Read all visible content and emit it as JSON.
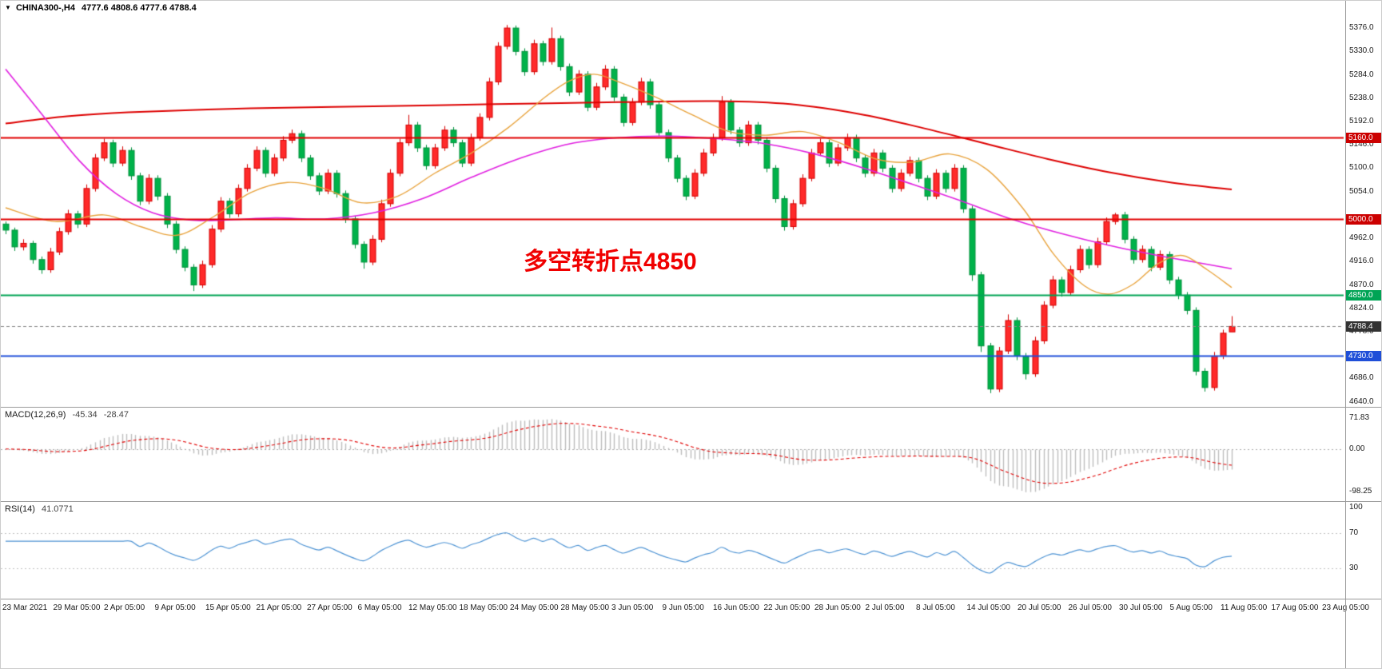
{
  "header": {
    "symbol": "CHINA300-,H4",
    "ohlc": "4777.6 4808.6 4777.6 4788.4"
  },
  "annotation": {
    "text": "多空转折点4850",
    "color": "#f00000"
  },
  "price_axis": {
    "ticks": [
      "5376.0",
      "5330.0",
      "5284.0",
      "5238.0",
      "5192.0",
      "5146.0",
      "5100.0",
      "5054.0",
      "4962.0",
      "4916.0",
      "4870.0",
      "4824.0",
      "4778.0",
      "4686.0",
      "4640.0"
    ],
    "range_min": 4630,
    "range_max": 5395
  },
  "hlines": [
    {
      "value": 5160.0,
      "label": "5160.0",
      "color": "#e00000",
      "badge_bg": "#cc0000",
      "style": "solid",
      "width": 2
    },
    {
      "value": 5000.0,
      "label": "5000.0",
      "color": "#e00000",
      "badge_bg": "#cc0000",
      "style": "solid",
      "width": 2
    },
    {
      "value": 4850.0,
      "label": "4850.0",
      "color": "#00a455",
      "badge_bg": "#00a455",
      "style": "solid",
      "width": 2
    },
    {
      "value": 4788.4,
      "label": "4788.4",
      "color": "#888888",
      "badge_bg": "#333333",
      "style": "dashed",
      "width": 1
    },
    {
      "value": 4730.0,
      "label": "4730.0",
      "color": "#1f4fd8",
      "badge_bg": "#1f4fd8",
      "style": "solid",
      "width": 2
    }
  ],
  "panes": {
    "macd": {
      "label": "MACD(12,26,9)",
      "value_main": "-45.34",
      "value_signal": "-28.47",
      "axis_ticks": [
        {
          "text": "71.83",
          "value": 71.83
        },
        {
          "text": "0.00",
          "value": 0
        },
        {
          "text": "-98.25",
          "value": -98.25
        }
      ],
      "colors": {
        "histogram": "#bdbdbd",
        "signal": "#e00000",
        "zero_line": "#aaaaaa"
      }
    },
    "rsi": {
      "label": "RSI(14)",
      "value": "41.0771",
      "axis_ticks": [
        {
          "text": "100",
          "value": 100
        },
        {
          "text": "70",
          "value": 70
        },
        {
          "text": "30",
          "value": 30
        }
      ],
      "levels": [
        70,
        30
      ],
      "colors": {
        "line": "#4f94d4",
        "level_line": "#c0c0c0"
      }
    }
  },
  "time_axis": [
    "23 Mar 2021",
    "29 Mar 05:00",
    "2 Apr 05:00",
    "9 Apr 05:00",
    "15 Apr 05:00",
    "21 Apr 05:00",
    "27 Apr 05:00",
    "6 May 05:00",
    "12 May 05:00",
    "18 May 05:00",
    "24 May 05:00",
    "28 May 05:00",
    "3 Jun 05:00",
    "9 Jun 05:00",
    "16 Jun 05:00",
    "22 Jun 05:00",
    "28 Jun 05:00",
    "2 Jul 05:00",
    "8 Jul 05:00",
    "14 Jul 05:00",
    "20 Jul 05:00",
    "26 Jul 05:00",
    "30 Jul 05:00",
    "5 Aug 05:00",
    "11 Aug 05:00",
    "17 Aug 05:00",
    "23 Aug 05:00"
  ],
  "chart_data": {
    "type": "candlestick",
    "title": "CHINA300- H4",
    "timeframe": "H4",
    "x_start": "23 Mar 2021",
    "x_end": "23 Aug 2021",
    "visible_price_range": [
      4640,
      5376
    ],
    "key_levels": [
      5160.0,
      5000.0,
      4850.0,
      4788.4,
      4730.0
    ],
    "current_bar": {
      "open": 4777.6,
      "high": 4808.6,
      "low": 4777.6,
      "close": 4788.4
    },
    "candle_colors": {
      "up_fill": "#ff2a2a",
      "up_stroke": "#d40000",
      "down_fill": "#00b24a",
      "down_stroke": "#00903c"
    },
    "candles": [
      [
        4990,
        4995,
        4970,
        4978
      ],
      [
        4978,
        4983,
        4937,
        4945
      ],
      [
        4945,
        4960,
        4938,
        4952
      ],
      [
        4952,
        4957,
        4912,
        4920
      ],
      [
        4920,
        4926,
        4892,
        4900
      ],
      [
        4900,
        4943,
        4894,
        4935
      ],
      [
        4935,
        4983,
        4929,
        4975
      ],
      [
        4975,
        5018,
        4969,
        5010
      ],
      [
        5010,
        5016,
        4982,
        4990
      ],
      [
        4990,
        5068,
        4984,
        5060
      ],
      [
        5060,
        5128,
        5054,
        5120
      ],
      [
        5120,
        5158,
        5114,
        5150
      ],
      [
        5150,
        5156,
        5102,
        5110
      ],
      [
        5110,
        5143,
        5104,
        5135
      ],
      [
        5135,
        5141,
        5077,
        5085
      ],
      [
        5085,
        5091,
        5027,
        5035
      ],
      [
        5035,
        5088,
        5029,
        5080
      ],
      [
        5080,
        5086,
        5037,
        5045
      ],
      [
        5045,
        5051,
        4982,
        4990
      ],
      [
        4990,
        4996,
        4932,
        4940
      ],
      [
        4940,
        4946,
        4897,
        4905
      ],
      [
        4905,
        4911,
        4858,
        4870
      ],
      [
        4870,
        4918,
        4864,
        4910
      ],
      [
        4910,
        4988,
        4904,
        4980
      ],
      [
        4980,
        5043,
        4974,
        5035
      ],
      [
        5035,
        5041,
        5002,
        5010
      ],
      [
        5010,
        5068,
        5004,
        5060
      ],
      [
        5060,
        5108,
        5054,
        5100
      ],
      [
        5100,
        5143,
        5094,
        5135
      ],
      [
        5135,
        5141,
        5082,
        5090
      ],
      [
        5090,
        5128,
        5084,
        5120
      ],
      [
        5120,
        5163,
        5114,
        5155
      ],
      [
        5155,
        5176,
        5149,
        5168
      ],
      [
        5168,
        5174,
        5112,
        5120
      ],
      [
        5120,
        5126,
        5077,
        5085
      ],
      [
        5085,
        5091,
        5047,
        5055
      ],
      [
        5055,
        5098,
        5049,
        5090
      ],
      [
        5090,
        5096,
        5042,
        5050
      ],
      [
        5050,
        5056,
        4992,
        5000
      ],
      [
        5000,
        5006,
        4942,
        4950
      ],
      [
        4950,
        4956,
        4902,
        4915
      ],
      [
        4915,
        4968,
        4909,
        4960
      ],
      [
        4960,
        5038,
        4954,
        5030
      ],
      [
        5030,
        5098,
        5024,
        5090
      ],
      [
        5090,
        5158,
        5084,
        5150
      ],
      [
        5150,
        5205,
        5144,
        5185
      ],
      [
        5185,
        5191,
        5132,
        5140
      ],
      [
        5140,
        5146,
        5097,
        5105
      ],
      [
        5105,
        5148,
        5099,
        5140
      ],
      [
        5140,
        5183,
        5134,
        5175
      ],
      [
        5175,
        5181,
        5142,
        5150
      ],
      [
        5150,
        5156,
        5102,
        5110
      ],
      [
        5110,
        5168,
        5104,
        5160
      ],
      [
        5160,
        5208,
        5154,
        5200
      ],
      [
        5200,
        5278,
        5194,
        5270
      ],
      [
        5270,
        5348,
        5264,
        5340
      ],
      [
        5340,
        5382,
        5334,
        5376
      ],
      [
        5376,
        5381,
        5322,
        5330
      ],
      [
        5330,
        5336,
        5282,
        5290
      ],
      [
        5290,
        5353,
        5284,
        5345
      ],
      [
        5345,
        5351,
        5302,
        5310
      ],
      [
        5310,
        5377,
        5304,
        5355
      ],
      [
        5355,
        5361,
        5292,
        5300
      ],
      [
        5300,
        5306,
        5242,
        5250
      ],
      [
        5250,
        5293,
        5244,
        5285
      ],
      [
        5285,
        5291,
        5212,
        5220
      ],
      [
        5220,
        5268,
        5214,
        5260
      ],
      [
        5260,
        5303,
        5254,
        5295
      ],
      [
        5295,
        5301,
        5232,
        5240
      ],
      [
        5240,
        5246,
        5182,
        5190
      ],
      [
        5190,
        5238,
        5184,
        5230
      ],
      [
        5230,
        5278,
        5224,
        5270
      ],
      [
        5270,
        5276,
        5217,
        5225
      ],
      [
        5225,
        5231,
        5162,
        5170
      ],
      [
        5170,
        5176,
        5112,
        5120
      ],
      [
        5120,
        5126,
        5072,
        5080
      ],
      [
        5080,
        5086,
        5037,
        5045
      ],
      [
        5045,
        5098,
        5039,
        5090
      ],
      [
        5090,
        5138,
        5084,
        5130
      ],
      [
        5130,
        5168,
        5124,
        5160
      ],
      [
        5160,
        5242,
        5154,
        5230
      ],
      [
        5230,
        5236,
        5167,
        5175
      ],
      [
        5175,
        5181,
        5142,
        5150
      ],
      [
        5150,
        5193,
        5144,
        5185
      ],
      [
        5185,
        5191,
        5147,
        5155
      ],
      [
        5155,
        5161,
        5092,
        5100
      ],
      [
        5100,
        5106,
        5032,
        5040
      ],
      [
        5040,
        5046,
        4977,
        4985
      ],
      [
        4985,
        5038,
        4979,
        5030
      ],
      [
        5030,
        5088,
        5024,
        5080
      ],
      [
        5080,
        5138,
        5074,
        5130
      ],
      [
        5130,
        5158,
        5124,
        5150
      ],
      [
        5150,
        5156,
        5102,
        5110
      ],
      [
        5110,
        5148,
        5104,
        5140
      ],
      [
        5140,
        5168,
        5134,
        5160
      ],
      [
        5160,
        5166,
        5112,
        5120
      ],
      [
        5120,
        5126,
        5082,
        5090
      ],
      [
        5090,
        5138,
        5084,
        5130
      ],
      [
        5130,
        5136,
        5092,
        5100
      ],
      [
        5100,
        5106,
        5052,
        5060
      ],
      [
        5060,
        5098,
        5054,
        5090
      ],
      [
        5090,
        5123,
        5084,
        5115
      ],
      [
        5115,
        5121,
        5072,
        5080
      ],
      [
        5080,
        5086,
        5037,
        5045
      ],
      [
        5045,
        5098,
        5039,
        5090
      ],
      [
        5090,
        5096,
        5052,
        5060
      ],
      [
        5060,
        5108,
        5054,
        5100
      ],
      [
        5100,
        5106,
        5012,
        5020
      ],
      [
        5020,
        5026,
        4878,
        4890
      ],
      [
        4890,
        4896,
        4738,
        4750
      ],
      [
        4750,
        4756,
        4657,
        4665
      ],
      [
        4665,
        4748,
        4659,
        4740
      ],
      [
        4740,
        4812,
        4734,
        4800
      ],
      [
        4800,
        4806,
        4722,
        4730
      ],
      [
        4730,
        4736,
        4684,
        4695
      ],
      [
        4695,
        4768,
        4689,
        4760
      ],
      [
        4760,
        4838,
        4754,
        4830
      ],
      [
        4830,
        4888,
        4824,
        4880
      ],
      [
        4880,
        4886,
        4847,
        4855
      ],
      [
        4855,
        4908,
        4849,
        4900
      ],
      [
        4900,
        4948,
        4894,
        4940
      ],
      [
        4940,
        4946,
        4902,
        4910
      ],
      [
        4910,
        4963,
        4904,
        4955
      ],
      [
        4955,
        5003,
        4949,
        4995
      ],
      [
        4995,
        5012,
        4989,
        5008
      ],
      [
        5008,
        5014,
        4952,
        4960
      ],
      [
        4960,
        4966,
        4912,
        4920
      ],
      [
        4920,
        4948,
        4914,
        4940
      ],
      [
        4940,
        4946,
        4897,
        4905
      ],
      [
        4905,
        4938,
        4899,
        4930
      ],
      [
        4930,
        4936,
        4872,
        4880
      ],
      [
        4880,
        4886,
        4842,
        4850
      ],
      [
        4850,
        4856,
        4812,
        4820
      ],
      [
        4820,
        4826,
        4692,
        4700
      ],
      [
        4700,
        4706,
        4660,
        4668
      ],
      [
        4668,
        4738,
        4662,
        4730
      ],
      [
        4730,
        4782,
        4724,
        4775
      ],
      [
        4777.6,
        4808.6,
        4777.6,
        4788.4
      ]
    ],
    "moving_averages": [
      {
        "name": "ma-slow-red",
        "color": "#dd0000",
        "width": 2,
        "points": [
          [
            0,
            5188
          ],
          [
            0.05,
            5202
          ],
          [
            0.1,
            5210
          ],
          [
            0.2,
            5218
          ],
          [
            0.3,
            5222
          ],
          [
            0.4,
            5226
          ],
          [
            0.5,
            5230
          ],
          [
            0.58,
            5232
          ],
          [
            0.64,
            5226
          ],
          [
            0.7,
            5205
          ],
          [
            0.75,
            5178
          ],
          [
            0.8,
            5148
          ],
          [
            0.85,
            5118
          ],
          [
            0.9,
            5092
          ],
          [
            0.95,
            5072
          ],
          [
            1,
            5058
          ]
        ]
      },
      {
        "name": "ma-mid-magenta",
        "color": "#e020e0",
        "width": 1.6,
        "points": [
          [
            0,
            5295
          ],
          [
            0.03,
            5205
          ],
          [
            0.06,
            5115
          ],
          [
            0.09,
            5050
          ],
          [
            0.12,
            5012
          ],
          [
            0.15,
            4998
          ],
          [
            0.18,
            4998
          ],
          [
            0.22,
            5002
          ],
          [
            0.26,
            5000
          ],
          [
            0.3,
            5012
          ],
          [
            0.34,
            5040
          ],
          [
            0.38,
            5082
          ],
          [
            0.42,
            5120
          ],
          [
            0.46,
            5148
          ],
          [
            0.5,
            5160
          ],
          [
            0.54,
            5163
          ],
          [
            0.58,
            5158
          ],
          [
            0.62,
            5148
          ],
          [
            0.66,
            5128
          ],
          [
            0.7,
            5100
          ],
          [
            0.74,
            5068
          ],
          [
            0.78,
            5035
          ],
          [
            0.82,
            5000
          ],
          [
            0.86,
            4972
          ],
          [
            0.9,
            4948
          ],
          [
            0.94,
            4928
          ],
          [
            0.97,
            4915
          ],
          [
            1,
            4902
          ]
        ]
      },
      {
        "name": "ma-fast-orange",
        "color": "#e8a33d",
        "width": 1.4,
        "points": [
          [
            0,
            5022
          ],
          [
            0.04,
            4995
          ],
          [
            0.08,
            5008
          ],
          [
            0.11,
            4985
          ],
          [
            0.14,
            4968
          ],
          [
            0.17,
            5005
          ],
          [
            0.2,
            5052
          ],
          [
            0.23,
            5072
          ],
          [
            0.26,
            5060
          ],
          [
            0.29,
            5032
          ],
          [
            0.32,
            5045
          ],
          [
            0.35,
            5090
          ],
          [
            0.38,
            5130
          ],
          [
            0.41,
            5180
          ],
          [
            0.44,
            5240
          ],
          [
            0.46,
            5272
          ],
          [
            0.48,
            5285
          ],
          [
            0.5,
            5270
          ],
          [
            0.53,
            5240
          ],
          [
            0.56,
            5205
          ],
          [
            0.59,
            5172
          ],
          [
            0.62,
            5165
          ],
          [
            0.65,
            5172
          ],
          [
            0.68,
            5150
          ],
          [
            0.71,
            5118
          ],
          [
            0.74,
            5112
          ],
          [
            0.77,
            5128
          ],
          [
            0.8,
            5098
          ],
          [
            0.83,
            5020
          ],
          [
            0.855,
            4930
          ],
          [
            0.88,
            4868
          ],
          [
            0.9,
            4852
          ],
          [
            0.92,
            4872
          ],
          [
            0.94,
            4912
          ],
          [
            0.96,
            4928
          ],
          [
            0.98,
            4900
          ],
          [
            1,
            4865
          ]
        ]
      }
    ],
    "indicators": {
      "macd": {
        "fast": 12,
        "slow": 26,
        "signal": 9,
        "last_main": -45.34,
        "last_signal": -28.47,
        "axis_range": [
          -98.25,
          71.83
        ]
      },
      "rsi": {
        "period": 14,
        "last_value": 41.0771,
        "levels": [
          70,
          30
        ]
      }
    }
  }
}
